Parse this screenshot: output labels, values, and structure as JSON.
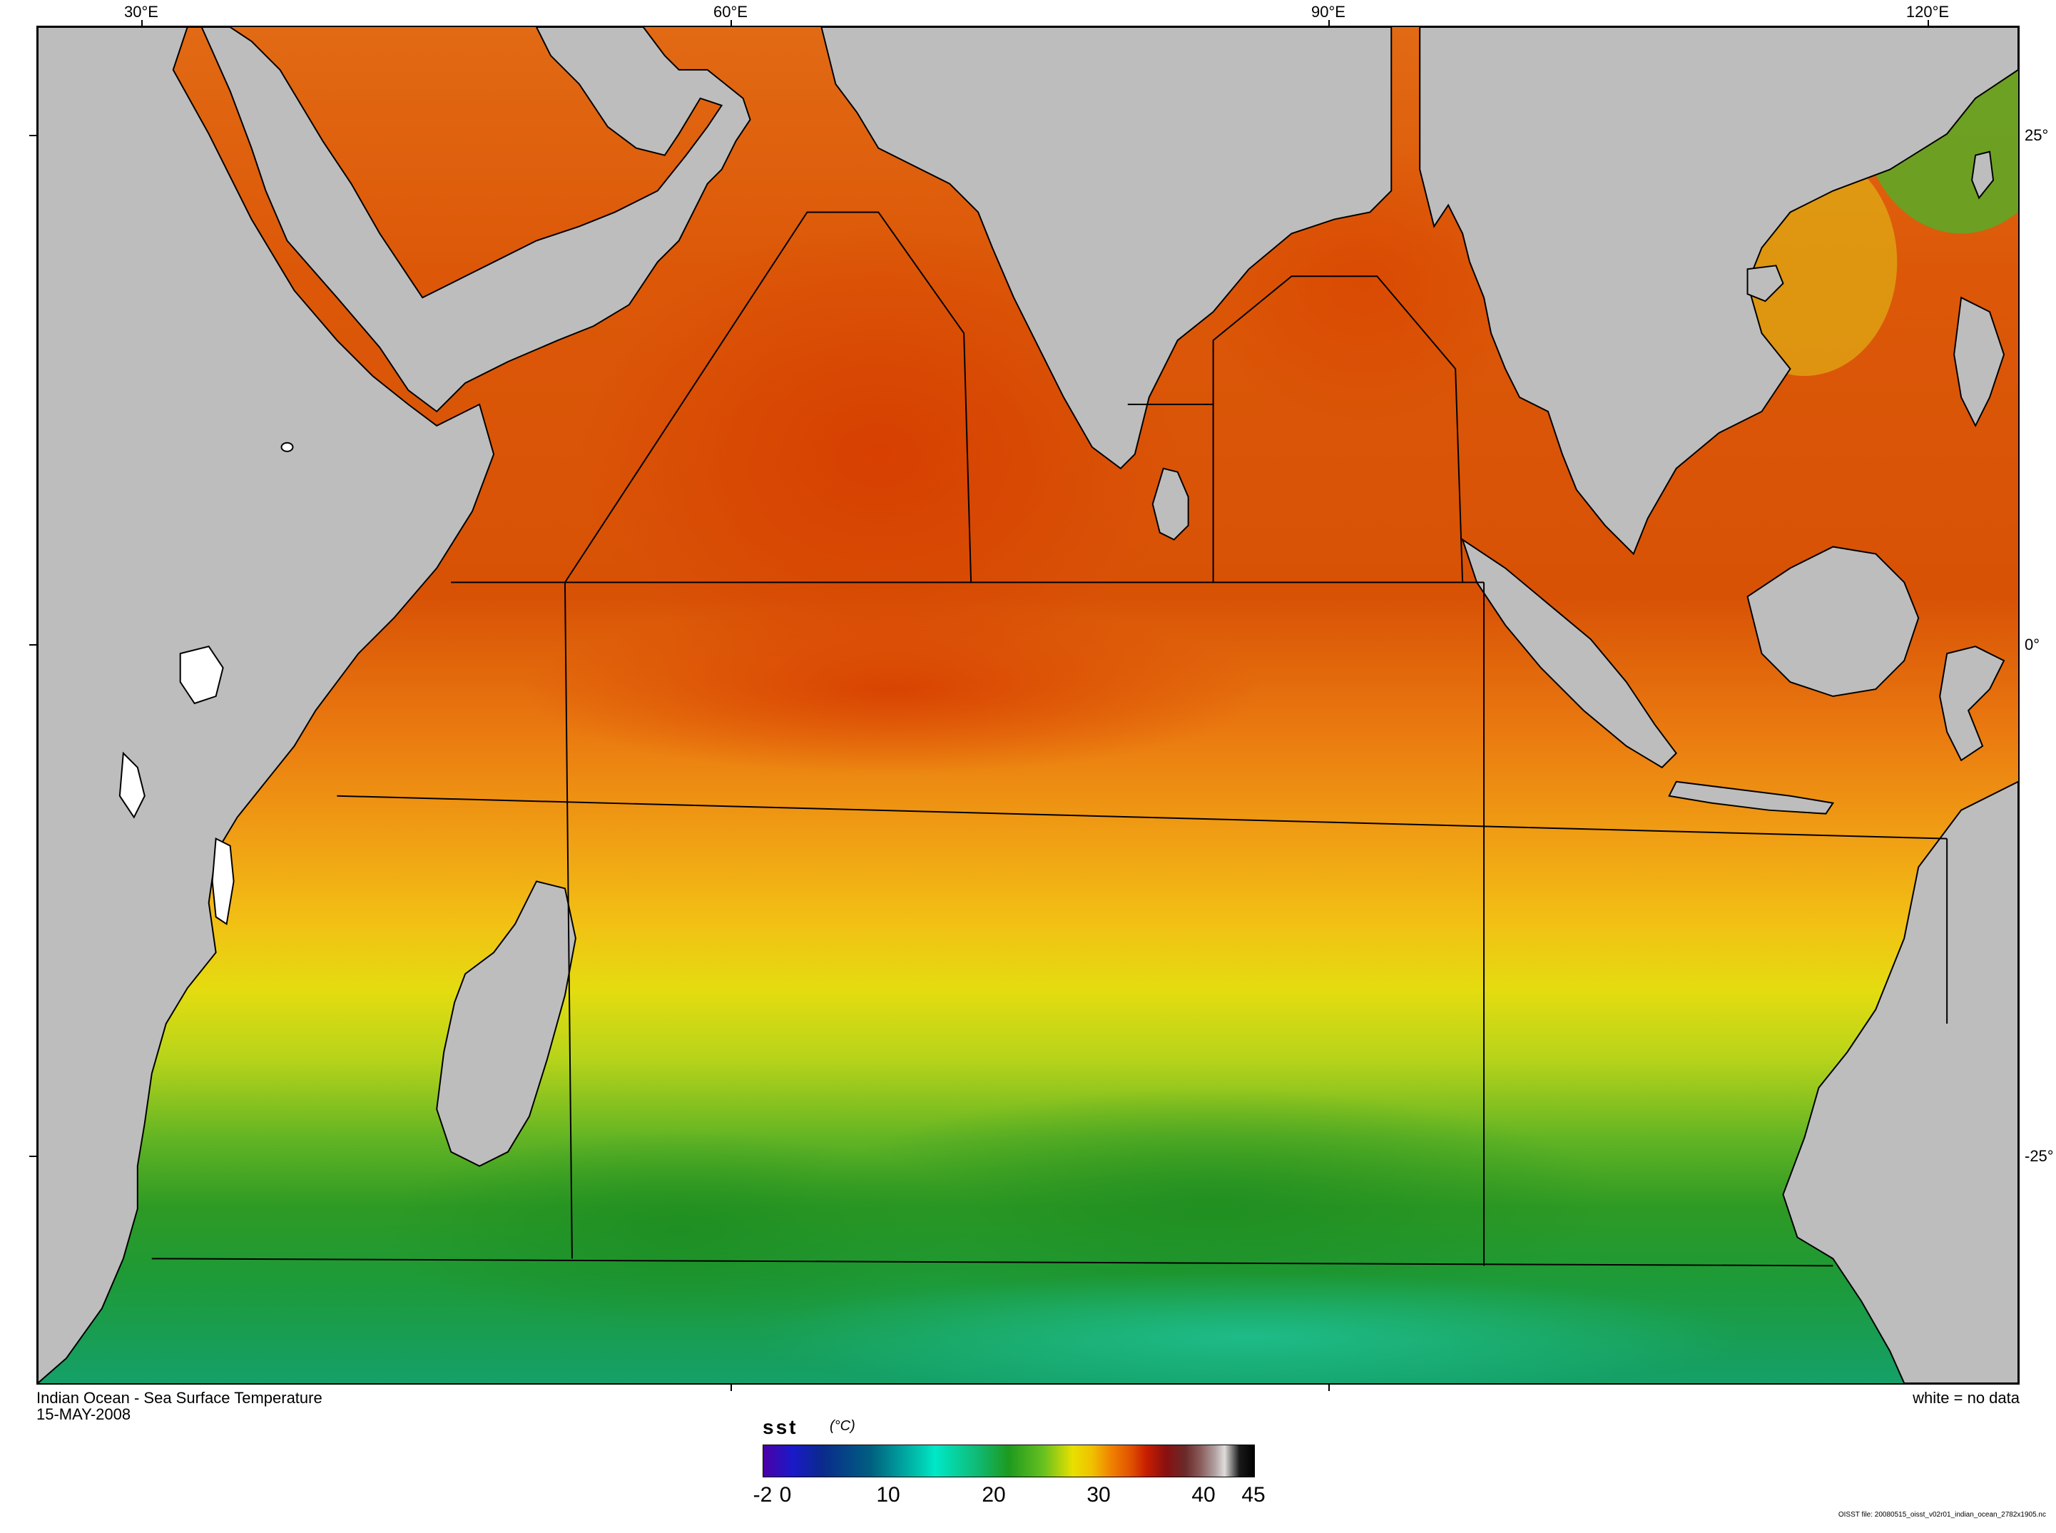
{
  "map": {
    "title": "Indian Ocean - Sea Surface Temperature",
    "date": "15-MAY-2008",
    "note": "white = no data",
    "file_credit": "OISST file: 20080515_oisst_v02r01_indian_ocean_2782x1905.nc",
    "lon_labels": [
      "30°E",
      "60°E",
      "90°E",
      "120°E"
    ],
    "lat_labels": [
      "25°",
      "0°",
      "-25°"
    ]
  },
  "colorbar": {
    "variable": "sst",
    "unit": "(°C)",
    "tick_labels": [
      "-2",
      "0",
      "10",
      "20",
      "30",
      "40",
      "45"
    ],
    "range": [
      -2,
      45
    ]
  },
  "colors": {
    "land": "#bdbdbd",
    "hot": "#d84a00",
    "warm": "#f08a10",
    "mild": "#f0c810",
    "cool": "#a8d018",
    "cold": "#1e9a2e",
    "colder": "#10a070"
  }
}
